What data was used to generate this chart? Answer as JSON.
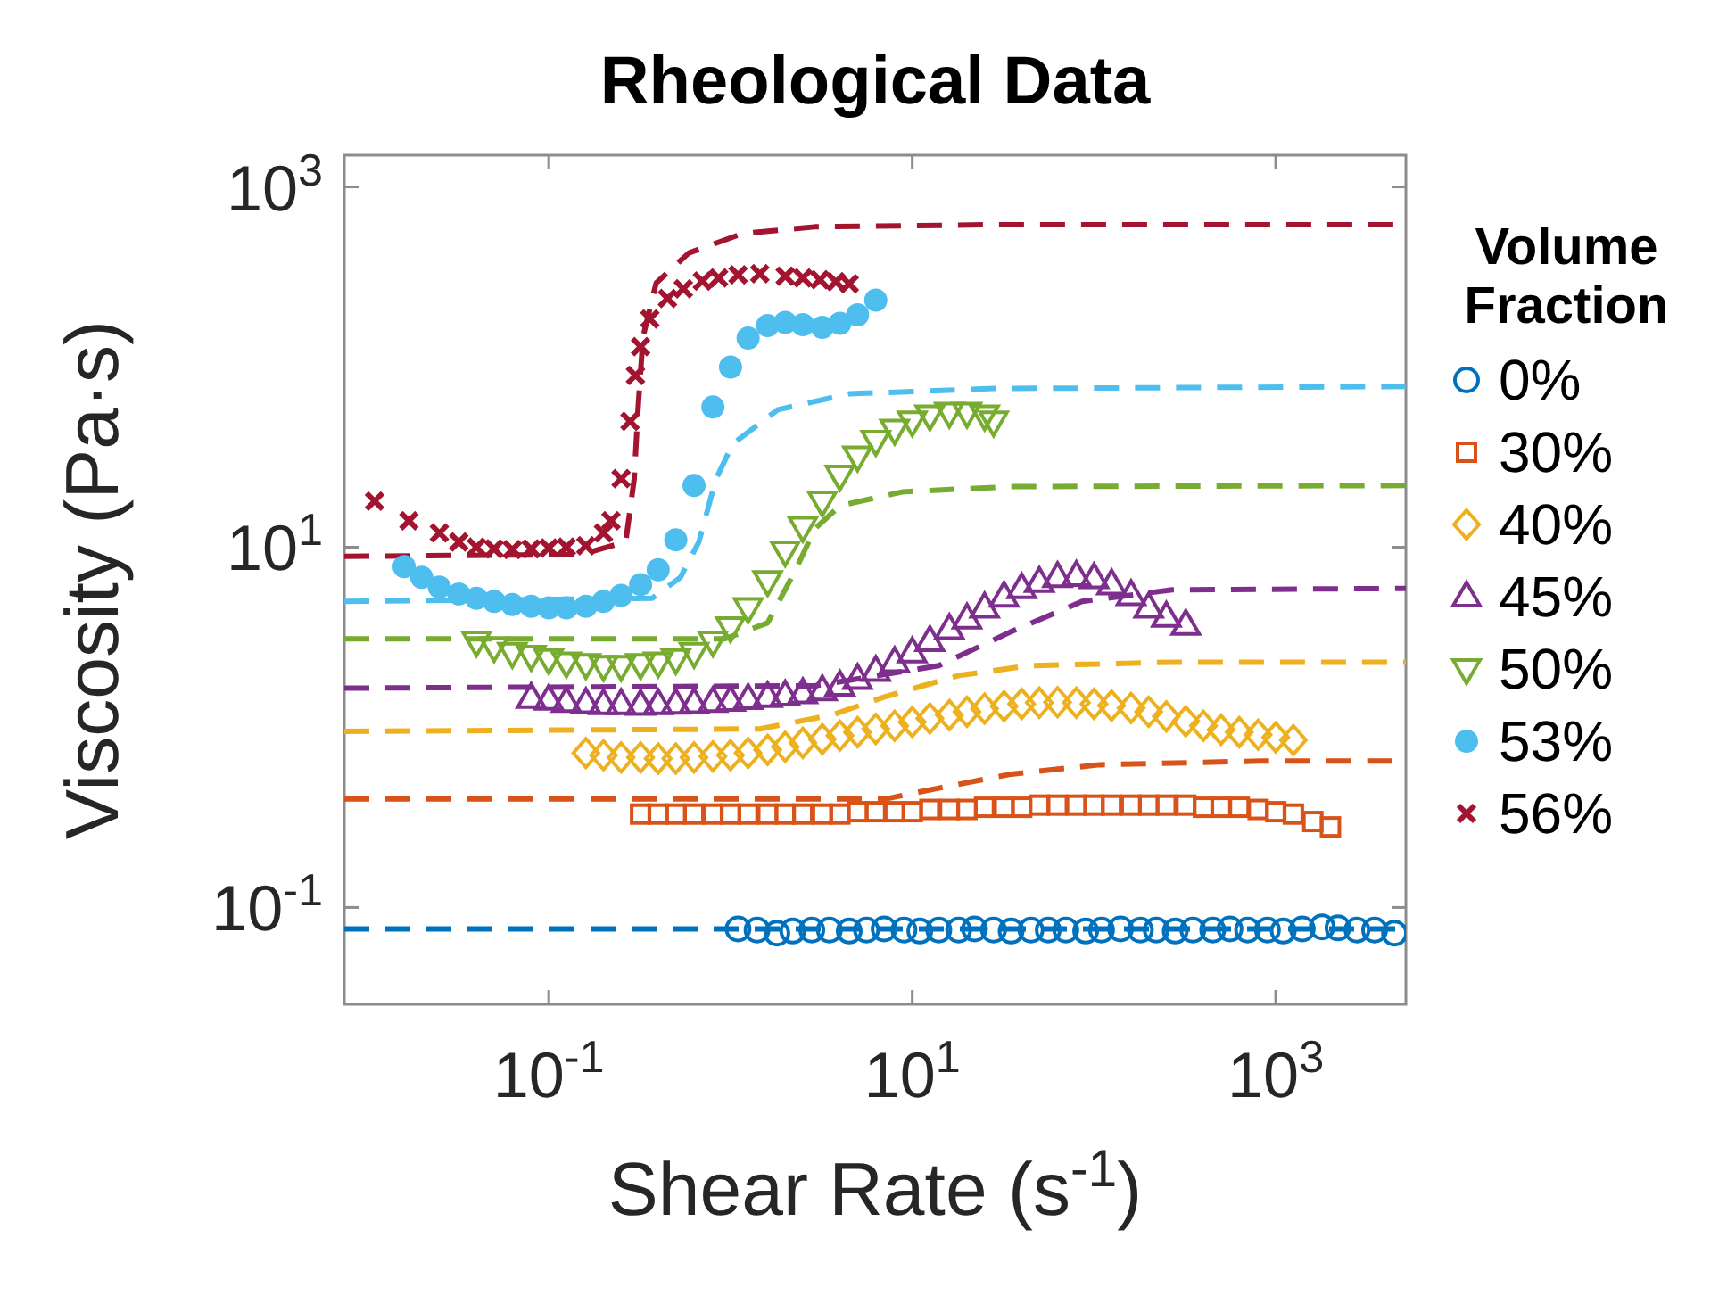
{
  "chart_data": {
    "type": "scatter",
    "title": "Rheological Data",
    "xlabel": "Shear Rate (s$^{-1}$)",
    "ylabel": "Viscosity (Pa·s)",
    "legend_title": "Volume Fraction",
    "legend": "right",
    "grid": false,
    "log": "xy",
    "xlim": [
      0.0075,
      5200
    ],
    "ylim": [
      0.029,
      1500
    ],
    "xticks": [
      {
        "value": 0.1,
        "label": "10$^{-1}$"
      },
      {
        "value": 10,
        "label": "10$^{1}$"
      },
      {
        "value": 1000,
        "label": "10$^{3}$"
      }
    ],
    "yticks": [
      {
        "value": 0.1,
        "label": "10$^{-1}$"
      },
      {
        "value": 10,
        "label": "10$^{1}$"
      },
      {
        "value": 1000,
        "label": "10$^{3}$"
      }
    ],
    "series": [
      {
        "type": "line",
        "line_style": "dashed",
        "color": "#0072bd",
        "x": [
          0.0075,
          5200
        ],
        "values": [
          0.076,
          0.076
        ]
      },
      {
        "type": "line",
        "line_style": "dashed",
        "color": "#d95319",
        "x": [
          0.0075,
          7.1,
          14,
          35,
          107,
          830,
          5200
        ],
        "values": [
          0.4,
          0.4,
          0.46,
          0.55,
          0.62,
          0.65,
          0.65
        ]
      },
      {
        "type": "line",
        "line_style": "dashed",
        "color": "#edb120",
        "x": [
          0.0075,
          1.45,
          3.6,
          7.1,
          18,
          44,
          270,
          5200
        ],
        "values": [
          0.95,
          0.98,
          1.17,
          1.48,
          1.94,
          2.2,
          2.3,
          2.3
        ]
      },
      {
        "type": "line",
        "line_style": "dashed",
        "color": "#7e2f8e",
        "x": [
          0.0075,
          2.9,
          14,
          35,
          86,
          270,
          5200
        ],
        "values": [
          1.65,
          1.7,
          2.2,
          3.4,
          5.0,
          5.8,
          5.9
        ]
      },
      {
        "type": "line",
        "line_style": "dashed",
        "color": "#77ac30",
        "x": [
          0.0075,
          0.93,
          1.6,
          2.3,
          2.9,
          4.0,
          8.9,
          35,
          5200
        ],
        "values": [
          3.1,
          3.1,
          3.8,
          7.6,
          12.6,
          17,
          20.3,
          21.7,
          22
        ]
      },
      {
        "type": "line",
        "line_style": "dashed",
        "color": "#4dbeee",
        "x": [
          0.0075,
          0.37,
          0.53,
          0.67,
          0.83,
          1.03,
          1.82,
          4.5,
          28,
          5200
        ],
        "values": [
          5.0,
          5.2,
          6.8,
          10.7,
          23.8,
          37.5,
          58,
          71,
          76,
          78
        ]
      },
      {
        "type": "line",
        "line_style": "dashed",
        "color": "#a2142f",
        "x": [
          0.0075,
          0.15,
          0.265,
          0.295,
          0.31,
          0.33,
          0.39,
          0.59,
          1.16,
          2.9,
          28,
          5200
        ],
        "values": [
          8.9,
          9.1,
          10.7,
          23.8,
          59,
          147,
          293,
          430,
          550,
          600,
          617,
          617
        ]
      },
      {
        "name": "0%",
        "marker": "circle",
        "color": "#0072bd",
        "x": [
          1.1,
          1.4,
          1.8,
          2.2,
          2.8,
          3.5,
          4.5,
          5.6,
          7,
          9,
          11,
          14,
          18,
          22,
          28,
          35,
          45,
          56,
          70,
          90,
          110,
          140,
          180,
          220,
          280,
          350,
          450,
          560,
          700,
          900,
          1100,
          1400,
          1800,
          2200,
          2800,
          3500,
          4500
        ],
        "values": [
          0.076,
          0.075,
          0.072,
          0.074,
          0.075,
          0.075,
          0.074,
          0.075,
          0.076,
          0.075,
          0.074,
          0.075,
          0.075,
          0.076,
          0.075,
          0.074,
          0.075,
          0.075,
          0.075,
          0.074,
          0.075,
          0.076,
          0.075,
          0.075,
          0.074,
          0.075,
          0.075,
          0.076,
          0.075,
          0.075,
          0.074,
          0.076,
          0.078,
          0.077,
          0.075,
          0.075,
          0.072
        ]
      },
      {
        "name": "30%",
        "marker": "square",
        "color": "#d95319",
        "x": [
          0.32,
          0.4,
          0.5,
          0.63,
          0.8,
          1,
          1.25,
          1.6,
          2,
          2.5,
          3.2,
          4,
          5,
          6.3,
          8,
          10,
          12.5,
          16,
          20,
          25,
          32,
          40,
          50,
          63,
          80,
          100,
          125,
          160,
          200,
          250,
          320,
          400,
          500,
          630,
          800,
          1000,
          1250,
          1600,
          2000
        ],
        "values": [
          0.33,
          0.33,
          0.33,
          0.33,
          0.33,
          0.33,
          0.33,
          0.33,
          0.33,
          0.33,
          0.33,
          0.33,
          0.34,
          0.34,
          0.34,
          0.34,
          0.35,
          0.35,
          0.35,
          0.36,
          0.36,
          0.36,
          0.37,
          0.37,
          0.37,
          0.37,
          0.37,
          0.37,
          0.37,
          0.37,
          0.37,
          0.36,
          0.36,
          0.36,
          0.35,
          0.34,
          0.33,
          0.3,
          0.28
        ]
      },
      {
        "name": "40%",
        "marker": "diamond",
        "color": "#edb120",
        "x": [
          0.16,
          0.2,
          0.25,
          0.32,
          0.4,
          0.5,
          0.63,
          0.8,
          1,
          1.25,
          1.6,
          2,
          2.5,
          3.2,
          4,
          5,
          6.3,
          8,
          10,
          12.5,
          16,
          20,
          25,
          32,
          40,
          50,
          63,
          80,
          100,
          125,
          160,
          200,
          250,
          320,
          400,
          500,
          630,
          800,
          1000,
          1250
        ],
        "values": [
          0.72,
          0.7,
          0.68,
          0.68,
          0.67,
          0.67,
          0.68,
          0.69,
          0.7,
          0.72,
          0.75,
          0.78,
          0.82,
          0.86,
          0.9,
          0.94,
          0.98,
          1.02,
          1.07,
          1.12,
          1.17,
          1.22,
          1.27,
          1.31,
          1.35,
          1.37,
          1.38,
          1.37,
          1.35,
          1.32,
          1.28,
          1.22,
          1.15,
          1.08,
          1.02,
          0.97,
          0.94,
          0.91,
          0.88,
          0.85
        ]
      },
      {
        "name": "45%",
        "marker": "triangle",
        "color": "#7e2f8e",
        "x": [
          0.08,
          0.1,
          0.125,
          0.16,
          0.2,
          0.25,
          0.32,
          0.4,
          0.5,
          0.63,
          0.8,
          1,
          1.25,
          1.6,
          2,
          2.5,
          3.2,
          4,
          5,
          6.3,
          8,
          10,
          12.5,
          16,
          20,
          25,
          32,
          40,
          50,
          63,
          80,
          100,
          125,
          160,
          200,
          250,
          320
        ],
        "values": [
          1.45,
          1.42,
          1.38,
          1.36,
          1.34,
          1.34,
          1.33,
          1.34,
          1.35,
          1.36,
          1.38,
          1.4,
          1.43,
          1.47,
          1.5,
          1.54,
          1.6,
          1.7,
          1.85,
          2.05,
          2.3,
          2.6,
          3.0,
          3.5,
          4.0,
          4.6,
          5.3,
          5.9,
          6.4,
          6.8,
          6.9,
          6.7,
          6.2,
          5.4,
          4.6,
          4.1,
          3.7
        ]
      },
      {
        "name": "50%",
        "marker": "triangle-down",
        "color": "#77ac30",
        "x": [
          0.04,
          0.05,
          0.063,
          0.08,
          0.1,
          0.125,
          0.16,
          0.2,
          0.25,
          0.32,
          0.4,
          0.5,
          0.63,
          0.8,
          1,
          1.25,
          1.6,
          2,
          2.5,
          3.2,
          4,
          5,
          6.3,
          8,
          10,
          12.5,
          16,
          20,
          25,
          28
        ],
        "values": [
          3.0,
          2.8,
          2.6,
          2.5,
          2.4,
          2.3,
          2.25,
          2.2,
          2.2,
          2.25,
          2.3,
          2.4,
          2.6,
          3.0,
          3.6,
          4.6,
          6.5,
          9.5,
          13,
          18,
          25,
          32,
          39,
          45,
          50,
          54,
          56,
          56,
          54,
          50
        ]
      },
      {
        "name": "53%",
        "marker": "point",
        "color": "#4dbeee",
        "x": [
          0.016,
          0.02,
          0.025,
          0.032,
          0.04,
          0.05,
          0.063,
          0.08,
          0.1,
          0.125,
          0.16,
          0.2,
          0.25,
          0.32,
          0.4,
          0.5,
          0.63,
          0.8,
          1,
          1.25,
          1.6,
          2,
          2.5,
          3.2,
          4,
          5,
          6.3
        ],
        "values": [
          7.8,
          6.8,
          6.0,
          5.5,
          5.2,
          5.0,
          4.8,
          4.7,
          4.6,
          4.6,
          4.7,
          5.0,
          5.4,
          6.2,
          7.5,
          11,
          22,
          60,
          100,
          145,
          170,
          177,
          172,
          166,
          175,
          195,
          235
        ]
      },
      {
        "name": "56%",
        "marker": "cross",
        "color": "#a2142f",
        "x": [
          0.011,
          0.017,
          0.025,
          0.032,
          0.04,
          0.05,
          0.063,
          0.08,
          0.1,
          0.125,
          0.16,
          0.2,
          0.22,
          0.25,
          0.28,
          0.3,
          0.32,
          0.36,
          0.45,
          0.55,
          0.7,
          0.86,
          1.1,
          1.45,
          2,
          2.5,
          3.1,
          3.8,
          4.5
        ],
        "values": [
          18,
          14,
          12,
          10.7,
          10,
          9.8,
          9.7,
          9.8,
          9.9,
          10,
          10.2,
          12,
          14,
          24,
          50,
          90,
          130,
          185,
          240,
          272,
          300,
          312,
          325,
          330,
          320,
          312,
          305,
          298,
          290
        ]
      }
    ]
  }
}
